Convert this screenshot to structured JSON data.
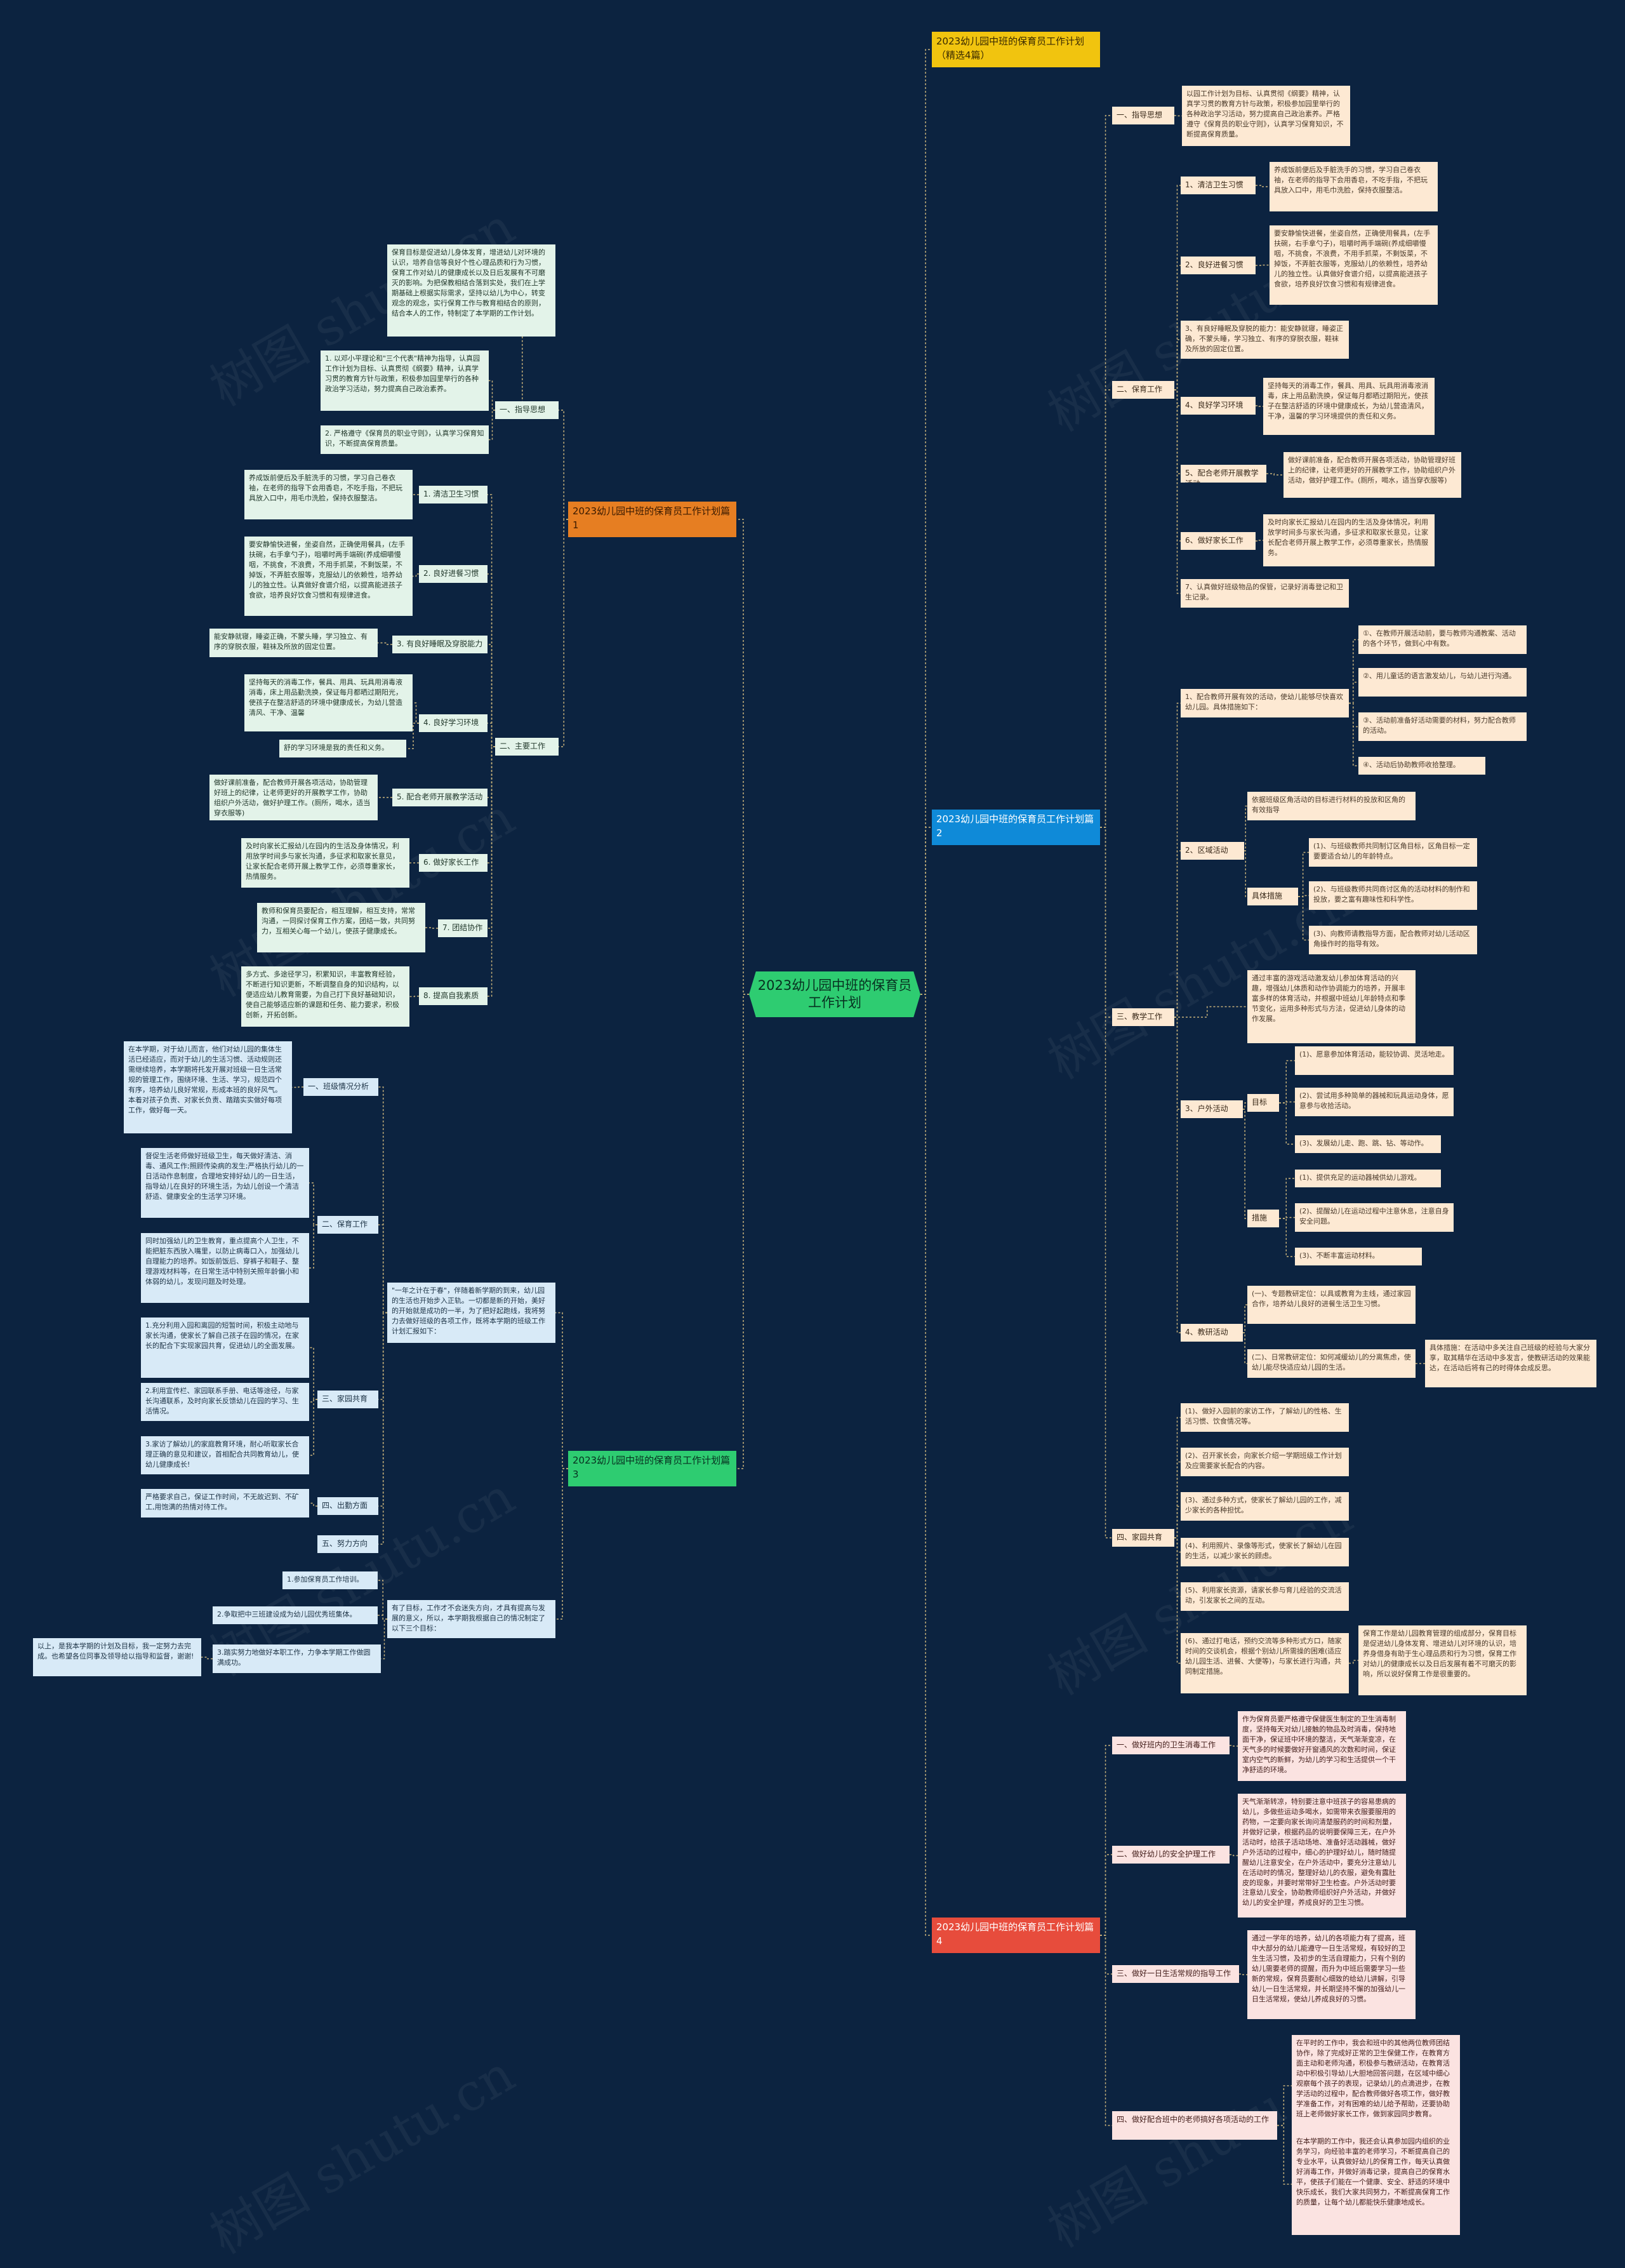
{
  "root": "2023幼儿园中班的保育员工作计划",
  "branches": [
    {
      "id": "b1",
      "label": "2023幼儿园中班的保育员工作计划（精选4篇）"
    },
    {
      "id": "b2",
      "label": "2023幼儿园中班的保育员工作计划篇1"
    },
    {
      "id": "b3",
      "label": "2023幼儿园中班的保育员工作计划篇2"
    },
    {
      "id": "b4",
      "label": "2023幼儿园中班的保育员工作计划篇3"
    },
    {
      "id": "b5",
      "label": "2023幼儿园中班的保育员工作计划篇4"
    }
  ],
  "nodes": [
    {
      "id": "r1",
      "text": "一、指导思想"
    },
    {
      "id": "r1a",
      "text": "以园工作计划为目标、认真贯彻《纲要》精神，认真学习贯的教育方针与政策，积极参加园里举行的各种政治学习活动，努力提高自己政治素养。严格遵守《保育员的职业守则》，认真学习保育知识，不断提高保育质量。"
    },
    {
      "id": "r2",
      "text": "二、保育工作"
    },
    {
      "id": "r2_1",
      "text": "1、清洁卫生习惯"
    },
    {
      "id": "r2_1a",
      "text": "养成饭前便后及手脏洗手的习惯，学习自己卷衣袖，在老师的指导下会用香皂，不吃手指，不把玩具放入口中，用毛巾洗脸，保持衣服整洁。"
    },
    {
      "id": "r2_2",
      "text": "2、良好进餐习惯"
    },
    {
      "id": "r2_2a",
      "text": "要安静愉快进餐，坐姿自然，正确使用餐具，(左手扶碗，右手拿勺子)，咀嚼时两手端碗(养成细嚼慢咽，不挑食，不浪费，不用手抓菜，不剩饭菜，不掉饭，不弄脏衣服等，克服幼儿的依赖性，培养幼儿的独立性。认真做好食谱介绍，以提高能进孩子食欲，培养良好饮食习惯和有规律进食。"
    },
    {
      "id": "r2_3",
      "text": "3、有良好睡眠及穿脱的能力：能安静就寝，睡姿正确，不蒙头睡，学习独立、有序的穿脱衣服，鞋袜及所放的固定位置。"
    },
    {
      "id": "r2_4",
      "text": "4、良好学习环境"
    },
    {
      "id": "r2_4a",
      "text": "坚持每天的消毒工作，餐具、用具、玩具用消毒液消毒，床上用品勤洗换，保证每月都晒过期阳光，使孩子在整洁舒适的环境中健康成长，为幼儿营造清风，干净，温馨的学习环境提供的责任和义务。"
    },
    {
      "id": "r2_5",
      "text": "5、配合老师开展教学活动"
    },
    {
      "id": "r2_5a",
      "text": "做好课前准备，配合教师开展各项活动，协助管理好班上的纪律，让老师更好的开展教学工作，协助组织户外活动，做好护理工作。(厕所，喝水，适当穿衣服等)"
    },
    {
      "id": "r2_6",
      "text": "6、做好家长工作"
    },
    {
      "id": "r2_6a",
      "text": "及时向家长汇报幼儿在园内的生活及身体情况，利用放学时间多与家长沟通，多征求和取家长意见，让家长配合老师开展上教学工作，必须尊重家长，热情服务。"
    },
    {
      "id": "r2_7",
      "text": "7、认真做好班级物品的保管，记录好消毒登记和卫生记录。"
    },
    {
      "id": "r3",
      "text": "1、配合教师开展有效的活动，使幼儿能够尽快喜欢幼儿园。具体措施如下："
    },
    {
      "id": "r3_1",
      "text": "①、在教师开展活动前，要与教师沟通教案、活动的各个环节，做到心中有数。"
    },
    {
      "id": "r3_2",
      "text": "②、用儿童话的语言激发幼儿，与幼儿进行沟通。"
    },
    {
      "id": "r3_3",
      "text": "③、活动前准备好活动需要的材料，努力配合教师的活动。"
    },
    {
      "id": "r3_4",
      "text": "④、活动后协助教师收拾整理。"
    },
    {
      "id": "r4",
      "text": "2、区域活动"
    },
    {
      "id": "r4a",
      "text": "依据班级区角活动的目标进行材料的投放和区角的有效指导"
    },
    {
      "id": "r4_m",
      "text": "具体措施"
    },
    {
      "id": "r4_m1",
      "text": "(1)、与班级教师共同制订区角目标，区角目标一定要要适合幼儿的年龄特点。"
    },
    {
      "id": "r4_m2",
      "text": "(2)、与班级教师共同商讨区角的活动材料的制作和投放，要之富有趣味性和科学性。"
    },
    {
      "id": "r4_m3",
      "text": "(3)、向教师请教指导方面，配合教师对幼儿活动区角操作时的指导有效。"
    },
    {
      "id": "r5",
      "text": "三、教学工作"
    },
    {
      "id": "r5a",
      "text": "通过丰富的游戏活动激发幼儿参加体育活动的兴趣，增强幼儿体质和动作协调能力的培养，开展丰富多样的体育活动，并根据中班幼儿年龄特点和季节变化，运用多种形式与方法，促进幼儿身体的动作发展。"
    },
    {
      "id": "r5_3",
      "text": "3、户外活动"
    },
    {
      "id": "r5_t",
      "text": "目标"
    },
    {
      "id": "r5_t1",
      "text": "(1)、愿意参加体育活动，能较协调、灵活地走。"
    },
    {
      "id": "r5_t2",
      "text": "(2)、尝试用多种简单的器械和玩具运动身体，愿意参与收拾活动。"
    },
    {
      "id": "r5_t3",
      "text": "(3)、发展幼儿走、跑、跳、钻、等动作。"
    },
    {
      "id": "r5_s",
      "text": "措施"
    },
    {
      "id": "r5_s1",
      "text": "(1)、提供充足的运动器械供幼儿游戏。"
    },
    {
      "id": "r5_s2",
      "text": "(2)、提醒幼儿在运动过程中注意休息，注意自身安全问题。"
    },
    {
      "id": "r5_s3",
      "text": "(3)、不断丰富运动材料。"
    },
    {
      "id": "r5_4",
      "text": "4、教研活动"
    },
    {
      "id": "r5_4a",
      "text": "(一)、专题教研定位：以具或教育为主线，通过家园合作，培养幼儿良好的进餐生活卫生习惯。"
    },
    {
      "id": "r5_4b",
      "text": "(二)、日常教研定位：如何减缓幼儿的分离焦虑，使幼儿能尽快适应幼儿园的生活。"
    },
    {
      "id": "r5_4c",
      "text": "具体措施：在活动中多关注自己班级的经验与大家分享，取其精华在活动中多发言，使教研活动的效果能达，在活动后将有己的时得体会成反思。"
    },
    {
      "id": "r6",
      "text": "四、家园共育"
    },
    {
      "id": "r6_1",
      "text": "(1)、做好入园前的家访工作，了解幼儿的性格、生活习惯、饮食情况等。"
    },
    {
      "id": "r6_2",
      "text": "(2)、召开家长会，向家长介绍一学期班级工作计划及应需要家长配合的内容。"
    },
    {
      "id": "r6_3",
      "text": "(3)、通过多种方式，使家长了解幼儿园的工作，减少家长的各种担忧。"
    },
    {
      "id": "r6_4",
      "text": "(4)、利用照片、录像等形式，使家长了解幼儿在园的生活，以减少家长的顾虑。"
    },
    {
      "id": "r6_5",
      "text": "(5)、利用家长资源，请家长参与育儿经验的交流活动，引发家长之间的互动。"
    },
    {
      "id": "r6_6",
      "text": "(6)、通过打电话，预约交流等多种形式方口，随家时间的交谈机会，根据个别幼儿所需操的困难(适应幼儿园生活、进餐、大便等)，与家长进行沟通，共同制定措施。"
    },
    {
      "id": "r6_6a",
      "text": "保育工作是幼儿园教育管理的组成部分，保育目标是促进幼儿身体发育、增进幼儿对环境的认识，培养身借身有助于生心理品质和行为习惯，保育工作对幼儿的健康成长以及日后发展有着不可磨灭的影响，所以说好保育工作是很重要的。"
    },
    {
      "id": "r7",
      "text": "一、做好班内的卫生消毒工作"
    },
    {
      "id": "r7a",
      "text": "作为保育员要严格遵守保健医生制定的卫生消毒制度，坚持每天对幼儿接触的物品及时消毒，保持地面干净，保证班中环境的整洁，天气渐渐变凉，在天气多的时候要做好开窗通风的次数和时间，保证室内空气的新鲜，为幼儿的学习和生活提供一个干净舒适的环境。"
    },
    {
      "id": "r8",
      "text": "二、做好幼儿的安全护理工作"
    },
    {
      "id": "r8a",
      "text": "天气渐渐转凉，特别要注意中班孩子的容易患病的幼儿，多做些运动多喝水，如需带来衣服要服用的药物，一定要向家长询问清楚服药的时间和剂量，并做好记录，根据药品的说明要保障三无，在户外活动时，给孩子活动场地、准备好活动器械，做好户外活动的过程中，细心的护理好幼儿，随时随提醒幼儿注意安全，在户外活动中，要充分注意幼儿在活动时的情况，整理好幼儿的衣服，避免有露肚皮的现象，并要时常带好卫生检查。户外活动时要注意幼儿安全，协助教师组织好户外活动，并做好幼儿的安全护理，养成良好的卫生习惯。"
    },
    {
      "id": "r9",
      "text": "三、做好一日生活常规的指导工作"
    },
    {
      "id": "r9a",
      "text": "通过一学年的培养，幼儿的各项能力有了提高，班中大部分的幼儿能遵守一日生活常规，有较好的卫生生活习惯，及初步的生活自理能力，只有个别的幼儿需要老师的提醒，而升为中班后需要学习一些新的常规，保育员要耐心细致的给幼儿讲解，引导幼儿一日生活常规，并长期坚持不懈的加强幼儿一日生活常规，使幼儿养成良好的习惯。"
    },
    {
      "id": "r10",
      "text": "四、做好配合班中的老师搞好各项活动的工作"
    },
    {
      "id": "r10a",
      "text": "在平时的工作中，我会和班中的其他两位教师团结协作，除了完成好正常的卫生保健工作，在教育方面主动和老师沟通，积极参与教研活动，在教育活动中积极引导幼儿大胆地回答问题，在区域中细心观察每个孩子的表现，记录幼儿的点滴进步，在教学活动的过程中，配合教师做好各项工作，做好教学准备工作，对有困难的幼儿给予帮助，还要协助班上老师做好家长工作，做到家园同步教育。"
    },
    {
      "id": "r10b",
      "text": "在本学期的工作中，我还会认真参加园内组织的业务学习，向经验丰富的老师学习，不断提高自己的专业水平，认真做好幼儿的保育工作，每天认真做好消毒工作，并做好消毒记录，提高自己的保育水平，使孩子们能在一个健康、安全、舒适的环境中快乐成长，我们大家共同努力，不断提高保育工作的质量，让每个幼儿都能快乐健康地成长。"
    },
    {
      "id": "l1",
      "text": "一、指导思想"
    },
    {
      "id": "l1a",
      "text": "保育目标是促进幼儿身体发育，增进幼儿对环境的认识，培养自信等良好个性心理品质和行为习惯，保育工作对幼儿的健康成长以及日后发展有不可磨灭的影响。为把保教相结合落到实处，我们在上学期基础上根据实际需求，坚持以幼儿为中心，转变观念的观念，实行保育工作与教育相结合的原则，结合本人的工作，特制定了本学期的工作计划。"
    },
    {
      "id": "l1b",
      "text": "1. 以邓小平理论和\"三个代表\"精神为指导，认真园工作计划为目标、认真贯彻《纲要》精神，认真学习贯的教育方针与政策，积极参加园里举行的各种政治学习活动，努力提高自己政治素养。"
    },
    {
      "id": "l1c",
      "text": "2. 严格遵守《保育员的职业守则》，认真学习保育知识，不断提高保育质量。"
    },
    {
      "id": "l2",
      "text": "二、主要工作"
    },
    {
      "id": "l2_1",
      "text": "1. 清洁卫生习惯"
    },
    {
      "id": "l2_1a",
      "text": "养成饭前便后及手脏洗手的习惯，学习自己卷衣袖，在老师的指导下会用香皂，不吃手指，不把玩具放入口中，用毛巾洗脸，保持衣服整洁。"
    },
    {
      "id": "l2_2",
      "text": "2. 良好进餐习惯"
    },
    {
      "id": "l2_2a",
      "text": "要安静愉快进餐，坐姿自然，正确使用餐具，(左手扶碗，右手拿勺子)，咀嚼时两手端碗(养成细嚼慢咽，不挑食，不浪费，不用手抓菜，不剩饭菜，不掉饭，不弄脏衣服等，克服幼儿的依赖性，培养幼儿的独立性。认真做好食谱介绍，以提高能进孩子食欲，培养良好饮食习惯和有规律进食。"
    },
    {
      "id": "l2_3",
      "text": "3. 有良好睡眠及穿脱能力"
    },
    {
      "id": "l2_3a",
      "text": "能安静就寝，睡姿正确，不蒙头睡，学习独立、有序的穿脱衣服，鞋袜及所放的固定位置。"
    },
    {
      "id": "l2_4",
      "text": "4. 良好学习环境"
    },
    {
      "id": "l2_4a",
      "text": "坚持每天的消毒工作，餐具、用具、玩具用消毒液消毒，床上用品勤洗换，保证每月都晒过期阳光，使孩子在整洁舒适的环境中健康成长，为幼儿营造清风、干净、温馨"
    },
    {
      "id": "l2_4b",
      "text": "舒的学习环境是我的责任和义务。"
    },
    {
      "id": "l2_5",
      "text": "5. 配合老师开展教学活动"
    },
    {
      "id": "l2_5a",
      "text": "做好课前准备，配合教师开展各项活动，协助管理好班上的纪律，让老师更好的开展教学工作，协助组织户外活动，做好护理工作。(厕所，喝水，适当穿衣服等)"
    },
    {
      "id": "l2_6",
      "text": "6. 做好家长工作"
    },
    {
      "id": "l2_6a",
      "text": "及时向家长汇报幼儿在园内的生活及身体情况，利用放学时间多与家长沟通，多征求和取家长意见，让家长配合老师开展上教学工作，必须尊重家长，热情服务。"
    },
    {
      "id": "l2_7",
      "text": "7. 团结协作"
    },
    {
      "id": "l2_7a",
      "text": "教师和保育员要配合，相互理解，相互支持，常常沟通，一同探讨保育工作方案，团结一致，共同努力，互相关心每一个幼儿，使孩子健康成长。"
    },
    {
      "id": "l2_8",
      "text": "8. 提高自我素质"
    },
    {
      "id": "l2_8a",
      "text": "多方式、多途径学习，积累知识，丰富教育经验，不断进行知识更新，不断调整自身的知识结构，以便适应幼儿教育需要，为自己打下良好基础知识，使自己能够适应新的课题和任务、能力要求，积极创新，开拓创新。"
    },
    {
      "id": "l3",
      "text": "一、班级情况分析"
    },
    {
      "id": "l3a",
      "text": "在本学期，对于幼儿而言，他们对幼儿园的集体生活已经适应，而对于幼儿的生活习惯、活动规则还需继续培养，本学期将托发开展对班级一日生活常规的管理工作，围绕环境、生活、学习，规范四个有序，培养幼儿良好常规，形成本班的良好风气。本着对孩子负责、对家长负责、踏踏实实做好每项工作，做好每一天。"
    },
    {
      "id": "l4",
      "text": "二、保育工作"
    },
    {
      "id": "l4a",
      "text": "督促生活老师做好班级卫生，每天做好清洁、消毒、通风工作;照顾传染病的发生;严格执行幼儿的一日活动作息制度，合理地安排好幼儿的一日生活，指导幼儿在良好的环境生活，为幼儿创设一个清洁舒适、健康安全的生活学习环境。"
    },
    {
      "id": "l4b",
      "text": "同时加强幼儿的卫生教育，重点提高个人卫生，不能把脏东西放入嘴里，以防止病毒口入，加强幼儿自理能力的培养。如饭前饭后、穿裤子和鞋子、整理游戏材料等，在日常生活中特别关照年龄偏小和体弱的幼儿，发现问题及时处理。"
    },
    {
      "id": "l5",
      "text": "三、家园共育"
    },
    {
      "id": "l5a",
      "text": "1.充分利用入园和离园的短暂时间，积极主动地与家长沟通，使家长了解自己孩子在园的情况，在家长的配合下实现家园共育，促进幼儿的全面发展。"
    },
    {
      "id": "l5b",
      "text": "2.利用宣传栏、家园联系手册、电话等途径，与家长沟通联系，及时向家长反馈幼儿在园的学习、生活情况。"
    },
    {
      "id": "l5c",
      "text": "3.家访了解幼儿的家庭教育环境，耐心听取家长合理正确的意见和建议，首相配合共同教育幼儿，使幼儿健康成长!"
    },
    {
      "id": "l6",
      "text": "四、出勤方面"
    },
    {
      "id": "l6a",
      "text": "严格要求自己，保证工作时间，不无故迟到、不矿工,用饱满的热情对待工作。"
    },
    {
      "id": "l7",
      "text": "五、努力方向"
    },
    {
      "id": "l3intro",
      "text": "\"一年之计在于春\"，伴随着新学期的到来，幼儿园的生活也开始步入正轨。一切都是新的开始，美好的开始就是成功的一半，为了把好起跑线，我将努力去做好班级的各项工作，既将本学期的班级工作计划汇报如下："
    },
    {
      "id": "l7intro",
      "text": "有了目标，工作才不会迷失方向，才具有提高与发展的意义，所以，本学期我根据自己的情况制定了以下三个目标："
    },
    {
      "id": "l7_1",
      "text": "1.参加保育员工作培训。"
    },
    {
      "id": "l7_2",
      "text": "2.争取把中三班建设成为幼儿园优秀班集体。"
    },
    {
      "id": "l7_3",
      "text": "3.踏实努力地做好本职工作，力争本学期工作做圆满成功。"
    },
    {
      "id": "l7end",
      "text": "以上，是我本学期的计划及目标，我一定努力去完成。也希望各位同事及领导给以指导和监督，谢谢!"
    }
  ],
  "watermark": "树图 shutu.cn",
  "colors": {
    "background": "#0c2340",
    "line": "#c8b27a",
    "center": "#2ecc71",
    "branch1": "#f1c40f",
    "branch2": "#e67e22",
    "branch3": "#0f8ad8",
    "branch4": "#2ecc71",
    "branch5": "#e74c3c"
  }
}
